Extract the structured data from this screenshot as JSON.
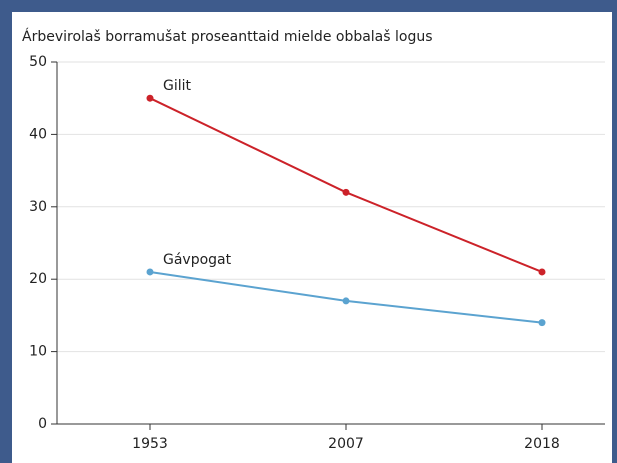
{
  "chart_data": {
    "type": "line",
    "title": "Árbevirolaš borramušat proseanttaid mielde obbalaš logus",
    "categories": [
      "1953",
      "2007",
      "2018"
    ],
    "series": [
      {
        "name": "Gilit",
        "color": "#cc2229",
        "values": [
          45,
          32,
          21
        ]
      },
      {
        "name": "Gávpogat",
        "color": "#5ba3d0",
        "values": [
          21,
          17,
          14
        ]
      }
    ],
    "ylim": [
      0,
      50
    ],
    "yticks": [
      0,
      10,
      20,
      30,
      40,
      50
    ],
    "grid": true
  }
}
